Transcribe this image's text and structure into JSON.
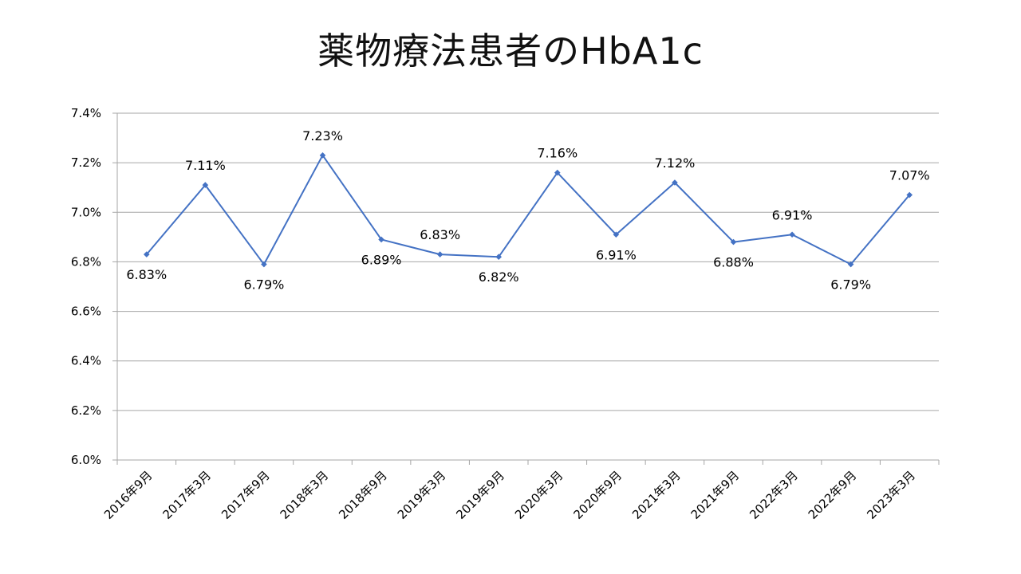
{
  "chart_data": {
    "type": "line",
    "title": "薬物療法患者のHbA1c",
    "xlabel": "",
    "ylabel": "",
    "categories": [
      "2016年9月",
      "2017年3月",
      "2017年9月",
      "2018年3月",
      "2018年9月",
      "2019年3月",
      "2019年9月",
      "2020年3月",
      "2020年9月",
      "2021年3月",
      "2021年9月",
      "2022年3月",
      "2022年9月",
      "2023年3月"
    ],
    "values": [
      6.83,
      7.11,
      6.79,
      7.23,
      6.89,
      6.83,
      6.82,
      7.16,
      6.91,
      7.12,
      6.88,
      6.91,
      6.79,
      7.07
    ],
    "data_labels": [
      "6.83%",
      "7.11%",
      "6.79%",
      "7.23%",
      "6.89%",
      "6.83%",
      "6.82%",
      "7.16%",
      "6.91%",
      "7.12%",
      "6.88%",
      "6.91%",
      "6.79%",
      "7.07%"
    ],
    "label_positions": [
      "below",
      "above",
      "below",
      "above",
      "below",
      "above",
      "below",
      "above",
      "below",
      "above",
      "below",
      "above",
      "below",
      "above"
    ],
    "ylim": [
      6.0,
      7.4
    ],
    "yticks": [
      "6.0%",
      "6.2%",
      "6.4%",
      "6.6%",
      "6.8%",
      "7.0%",
      "7.2%",
      "7.4%"
    ],
    "grid": true,
    "legend": "none",
    "line_color": "#4472C4",
    "grid_color": "#A6A6A6"
  }
}
